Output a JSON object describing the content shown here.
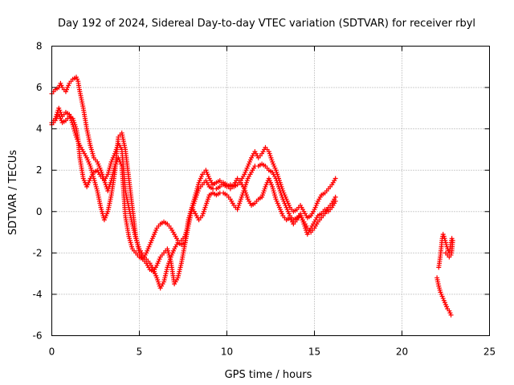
{
  "chart_data": {
    "type": "scatter",
    "title": "Day 192 of 2024, Sidereal Day-to-day VTEC variation (SDTVAR) for receiver rbyl",
    "xlabel": "GPS time / hours",
    "ylabel": "SDTVAR / TECUs",
    "xlim": [
      0,
      25
    ],
    "ylim": [
      -6,
      8
    ],
    "xticks": [
      0,
      5,
      10,
      15,
      20,
      25
    ],
    "yticks": [
      -6,
      -4,
      -2,
      0,
      2,
      4,
      6,
      8
    ],
    "grid": true,
    "marker": "plus",
    "series": [
      {
        "name": "SDTVAR track A",
        "color": "#ff0000",
        "points": [
          [
            0.0,
            5.7
          ],
          [
            0.2,
            5.9
          ],
          [
            0.4,
            6.0
          ],
          [
            0.5,
            6.2
          ],
          [
            0.6,
            6.0
          ],
          [
            0.8,
            5.8
          ],
          [
            1.0,
            6.2
          ],
          [
            1.2,
            6.4
          ],
          [
            1.4,
            6.5
          ],
          [
            1.5,
            6.3
          ],
          [
            1.6,
            5.8
          ],
          [
            1.8,
            5.0
          ],
          [
            2.0,
            4.0
          ],
          [
            2.2,
            3.2
          ],
          [
            2.4,
            2.6
          ],
          [
            2.6,
            2.4
          ],
          [
            2.8,
            2.0
          ],
          [
            3.0,
            1.5
          ],
          [
            3.2,
            1.0
          ],
          [
            3.4,
            1.5
          ],
          [
            3.6,
            2.2
          ],
          [
            3.8,
            2.6
          ],
          [
            4.0,
            2.2
          ],
          [
            4.1,
            1.0
          ],
          [
            4.2,
            -0.2
          ],
          [
            4.4,
            -1.2
          ],
          [
            4.6,
            -1.8
          ],
          [
            4.8,
            -2.0
          ],
          [
            5.0,
            -2.2
          ],
          [
            5.2,
            -2.3
          ],
          [
            5.4,
            -2.0
          ],
          [
            5.6,
            -1.6
          ],
          [
            5.8,
            -1.2
          ],
          [
            6.0,
            -0.8
          ],
          [
            6.2,
            -0.6
          ],
          [
            6.4,
            -0.5
          ],
          [
            6.6,
            -0.6
          ],
          [
            6.8,
            -0.8
          ],
          [
            7.0,
            -1.1
          ],
          [
            7.2,
            -1.4
          ],
          [
            7.4,
            -1.4
          ],
          [
            7.6,
            -1.2
          ],
          [
            7.8,
            -0.6
          ],
          [
            8.0,
            0.2
          ],
          [
            8.2,
            0.8
          ],
          [
            8.4,
            1.4
          ],
          [
            8.6,
            1.8
          ],
          [
            8.8,
            2.0
          ],
          [
            9.0,
            1.6
          ],
          [
            9.2,
            1.3
          ],
          [
            9.4,
            1.4
          ],
          [
            9.6,
            1.5
          ],
          [
            9.8,
            1.3
          ],
          [
            10.0,
            1.2
          ],
          [
            10.2,
            1.3
          ],
          [
            10.4,
            1.2
          ],
          [
            10.6,
            1.3
          ],
          [
            10.8,
            1.5
          ],
          [
            11.0,
            1.8
          ],
          [
            11.2,
            2.2
          ],
          [
            11.4,
            2.6
          ],
          [
            11.6,
            2.9
          ],
          [
            11.8,
            2.6
          ],
          [
            12.0,
            2.8
          ],
          [
            12.2,
            3.1
          ],
          [
            12.4,
            2.9
          ],
          [
            12.6,
            2.4
          ],
          [
            12.8,
            2.0
          ],
          [
            13.0,
            1.5
          ],
          [
            13.2,
            1.0
          ],
          [
            13.4,
            0.6
          ],
          [
            13.6,
            0.2
          ],
          [
            13.8,
            0.0
          ],
          [
            14.0,
            0.1
          ],
          [
            14.2,
            0.3
          ],
          [
            14.4,
            0.0
          ],
          [
            14.6,
            -0.3
          ],
          [
            14.8,
            -0.2
          ],
          [
            15.0,
            0.1
          ],
          [
            15.2,
            0.5
          ],
          [
            15.4,
            0.8
          ],
          [
            15.6,
            0.9
          ],
          [
            15.8,
            1.1
          ],
          [
            16.0,
            1.3
          ],
          [
            16.2,
            1.6
          ]
        ]
      },
      {
        "name": "SDTVAR track B",
        "color": "#ff0000",
        "points": [
          [
            0.0,
            4.2
          ],
          [
            0.2,
            4.4
          ],
          [
            0.4,
            4.7
          ],
          [
            0.6,
            4.3
          ],
          [
            0.8,
            4.4
          ],
          [
            1.0,
            4.6
          ],
          [
            1.2,
            4.5
          ],
          [
            1.4,
            4.0
          ],
          [
            1.5,
            3.5
          ],
          [
            1.6,
            2.6
          ],
          [
            1.8,
            1.6
          ],
          [
            2.0,
            1.2
          ],
          [
            2.2,
            1.6
          ],
          [
            2.4,
            1.9
          ],
          [
            2.6,
            2.0
          ],
          [
            2.8,
            1.7
          ],
          [
            3.0,
            1.5
          ],
          [
            3.2,
            1.8
          ],
          [
            3.4,
            2.4
          ],
          [
            3.6,
            2.8
          ],
          [
            3.8,
            3.3
          ],
          [
            4.0,
            3.0
          ],
          [
            4.1,
            2.0
          ],
          [
            4.2,
            1.0
          ],
          [
            4.4,
            0.2
          ],
          [
            4.6,
            -0.6
          ],
          [
            4.8,
            -1.3
          ],
          [
            5.0,
            -1.8
          ],
          [
            5.2,
            -2.1
          ],
          [
            5.4,
            -2.3
          ],
          [
            5.6,
            -2.5
          ],
          [
            5.8,
            -2.8
          ],
          [
            6.0,
            -3.2
          ],
          [
            6.2,
            -3.7
          ],
          [
            6.4,
            -3.4
          ],
          [
            6.6,
            -2.7
          ],
          [
            6.8,
            -2.2
          ],
          [
            7.0,
            -1.8
          ],
          [
            7.2,
            -1.5
          ],
          [
            7.4,
            -1.6
          ],
          [
            7.6,
            -1.5
          ],
          [
            7.8,
            -0.4
          ],
          [
            8.0,
            0.2
          ],
          [
            8.2,
            -0.1
          ],
          [
            8.4,
            -0.4
          ],
          [
            8.6,
            -0.2
          ],
          [
            8.8,
            0.3
          ],
          [
            9.0,
            0.8
          ],
          [
            9.2,
            0.9
          ],
          [
            9.4,
            0.8
          ],
          [
            9.6,
            0.9
          ],
          [
            9.8,
            0.9
          ],
          [
            10.0,
            0.8
          ],
          [
            10.2,
            0.6
          ],
          [
            10.4,
            0.3
          ],
          [
            10.6,
            0.1
          ],
          [
            10.8,
            0.6
          ],
          [
            11.0,
            1.1
          ],
          [
            11.2,
            1.6
          ],
          [
            11.4,
            1.9
          ],
          [
            11.6,
            2.2
          ],
          [
            11.8,
            2.2
          ],
          [
            12.0,
            2.3
          ],
          [
            12.2,
            2.2
          ],
          [
            12.4,
            2.0
          ],
          [
            12.6,
            1.9
          ],
          [
            12.8,
            1.6
          ],
          [
            13.0,
            1.1
          ],
          [
            13.2,
            0.6
          ],
          [
            13.4,
            0.2
          ],
          [
            13.6,
            -0.2
          ],
          [
            13.8,
            -0.4
          ],
          [
            14.0,
            -0.3
          ],
          [
            14.2,
            -0.2
          ],
          [
            14.4,
            -0.5
          ],
          [
            14.6,
            -0.8
          ],
          [
            14.8,
            -1.0
          ],
          [
            15.0,
            -0.8
          ],
          [
            15.2,
            -0.5
          ],
          [
            15.4,
            -0.3
          ],
          [
            15.6,
            -0.1
          ],
          [
            15.8,
            0.2
          ],
          [
            16.0,
            0.4
          ],
          [
            16.2,
            0.7
          ]
        ]
      },
      {
        "name": "SDTVAR track C",
        "color": "#ff0000",
        "points": [
          [
            0.0,
            4.3
          ],
          [
            0.2,
            4.5
          ],
          [
            0.4,
            5.0
          ],
          [
            0.6,
            4.6
          ],
          [
            0.8,
            4.8
          ],
          [
            1.0,
            4.7
          ],
          [
            1.2,
            4.2
          ],
          [
            1.4,
            3.6
          ],
          [
            1.6,
            3.2
          ],
          [
            1.8,
            2.9
          ],
          [
            2.0,
            2.6
          ],
          [
            2.2,
            2.2
          ],
          [
            2.4,
            1.6
          ],
          [
            2.6,
            1.0
          ],
          [
            2.8,
            0.2
          ],
          [
            3.0,
            -0.4
          ],
          [
            3.2,
            0.0
          ],
          [
            3.4,
            0.8
          ],
          [
            3.6,
            1.9
          ],
          [
            3.8,
            3.6
          ],
          [
            4.0,
            3.8
          ],
          [
            4.2,
            3.0
          ],
          [
            4.4,
            1.6
          ],
          [
            4.6,
            0.2
          ],
          [
            4.8,
            -1.2
          ],
          [
            5.0,
            -2.0
          ],
          [
            5.2,
            -2.3
          ],
          [
            5.4,
            -2.5
          ],
          [
            5.6,
            -2.8
          ],
          [
            5.8,
            -2.9
          ],
          [
            6.0,
            -2.6
          ],
          [
            6.2,
            -2.2
          ],
          [
            6.4,
            -2.0
          ],
          [
            6.6,
            -1.8
          ],
          [
            6.8,
            -2.4
          ],
          [
            7.0,
            -3.5
          ],
          [
            7.2,
            -3.2
          ],
          [
            7.4,
            -2.5
          ],
          [
            7.6,
            -1.6
          ],
          [
            7.8,
            -0.7
          ],
          [
            8.0,
            0.1
          ],
          [
            8.2,
            0.6
          ],
          [
            8.4,
            1.1
          ],
          [
            8.6,
            1.3
          ],
          [
            8.8,
            1.5
          ],
          [
            9.0,
            1.2
          ],
          [
            9.2,
            1.1
          ],
          [
            9.4,
            1.1
          ],
          [
            9.6,
            1.2
          ],
          [
            9.8,
            1.4
          ],
          [
            10.0,
            1.3
          ],
          [
            10.2,
            1.1
          ],
          [
            10.4,
            1.3
          ],
          [
            10.6,
            1.6
          ],
          [
            10.8,
            1.4
          ],
          [
            11.0,
            1.1
          ],
          [
            11.2,
            0.6
          ],
          [
            11.4,
            0.3
          ],
          [
            11.6,
            0.4
          ],
          [
            11.8,
            0.6
          ],
          [
            12.0,
            0.7
          ],
          [
            12.2,
            1.2
          ],
          [
            12.4,
            1.6
          ],
          [
            12.6,
            1.2
          ],
          [
            12.8,
            0.6
          ],
          [
            13.0,
            0.2
          ],
          [
            13.2,
            -0.2
          ],
          [
            13.4,
            -0.4
          ],
          [
            13.6,
            -0.3
          ],
          [
            13.8,
            -0.6
          ],
          [
            14.0,
            -0.4
          ],
          [
            14.2,
            -0.1
          ],
          [
            14.4,
            -0.6
          ],
          [
            14.6,
            -1.1
          ],
          [
            14.8,
            -0.8
          ],
          [
            15.0,
            -0.5
          ],
          [
            15.2,
            -0.2
          ],
          [
            15.4,
            -0.1
          ],
          [
            15.6,
            0.1
          ],
          [
            15.8,
            0.0
          ],
          [
            16.0,
            0.2
          ],
          [
            16.2,
            0.5
          ]
        ]
      },
      {
        "name": "SDTVAR track D",
        "color": "#ff0000",
        "points": [
          [
            22.0,
            -3.2
          ],
          [
            22.1,
            -3.6
          ],
          [
            22.2,
            -3.9
          ],
          [
            22.3,
            -4.1
          ],
          [
            22.4,
            -4.3
          ],
          [
            22.5,
            -4.5
          ],
          [
            22.6,
            -4.7
          ],
          [
            22.7,
            -4.8
          ],
          [
            22.8,
            -5.0
          ]
        ]
      },
      {
        "name": "SDTVAR track E",
        "color": "#ff0000",
        "points": [
          [
            22.1,
            -2.7
          ],
          [
            22.15,
            -2.4
          ],
          [
            22.2,
            -2.1
          ],
          [
            22.25,
            -1.7
          ],
          [
            22.3,
            -1.3
          ],
          [
            22.35,
            -1.1
          ],
          [
            22.4,
            -1.2
          ],
          [
            22.5,
            -1.5
          ],
          [
            22.6,
            -1.8
          ],
          [
            22.7,
            -2.0
          ],
          [
            22.75,
            -1.8
          ],
          [
            22.8,
            -1.5
          ],
          [
            22.85,
            -1.3
          ],
          [
            22.9,
            -1.4
          ],
          [
            22.85,
            -1.9
          ],
          [
            22.8,
            -2.1
          ],
          [
            22.7,
            -2.2
          ],
          [
            22.6,
            -2.1
          ],
          [
            22.5,
            -2.0
          ]
        ]
      }
    ]
  }
}
